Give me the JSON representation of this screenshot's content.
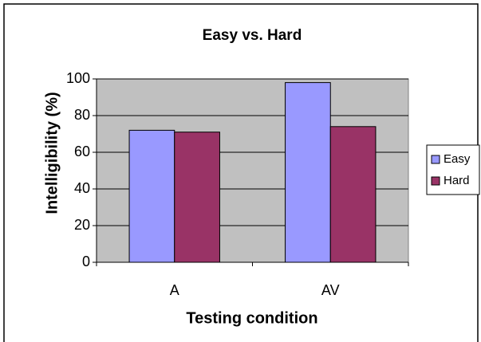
{
  "chart_data": {
    "type": "bar",
    "title": "Easy vs. Hard",
    "x_label": "Testing condition",
    "y_label": "Intelligibility (%)",
    "categories": [
      "A",
      "AV"
    ],
    "series": [
      {
        "name": "Easy",
        "color": "#9999ff",
        "values": [
          72,
          98
        ]
      },
      {
        "name": "Hard",
        "color": "#993366",
        "values": [
          71,
          74
        ]
      }
    ],
    "ylim": [
      0,
      100
    ],
    "yticks": [
      0,
      20,
      40,
      60,
      80,
      100
    ],
    "grid": true,
    "legend": "right"
  }
}
